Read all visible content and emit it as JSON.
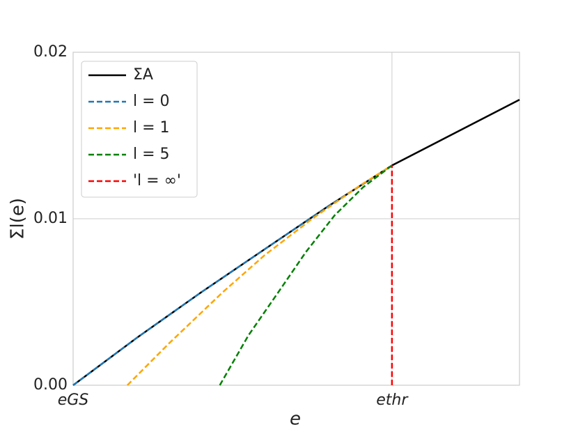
{
  "chart_data": {
    "type": "line",
    "xlabel": "e",
    "ylabel": "Σl(e)",
    "xlim": [
      0,
      1.4
    ],
    "ylim": [
      0,
      0.02
    ],
    "xticks": [
      {
        "value": 0,
        "label": "eGS"
      },
      {
        "value": 1.0,
        "label": "ethr"
      }
    ],
    "yticks": [
      {
        "value": 0,
        "label": "0.00"
      },
      0.01,
      0.02
    ],
    "grid": true,
    "legend": "upper left",
    "series": [
      {
        "name": "ΣA",
        "color": "#000000",
        "dash": false,
        "x": [
          0,
          0.2,
          0.4,
          0.6,
          0.8,
          1.0,
          1.4
        ],
        "values": [
          0,
          0.00285,
          0.00556,
          0.00816,
          0.01075,
          0.0132,
          0.01715
        ]
      },
      {
        "name": "l = 0",
        "color": "#1f77b4",
        "dash": true,
        "x": [
          0,
          0.2,
          0.4,
          0.6,
          0.8,
          1.0
        ],
        "values": [
          0,
          0.00285,
          0.00556,
          0.00816,
          0.01075,
          0.0132
        ]
      },
      {
        "name": "l = 1",
        "color": "#ffa500",
        "dash": true,
        "x": [
          0.17,
          0.3,
          0.47,
          0.6,
          0.75,
          0.9,
          1.0
        ],
        "values": [
          0,
          0.0025,
          0.0056,
          0.0078,
          0.01,
          0.012,
          0.0132
        ]
      },
      {
        "name": "l = 5",
        "color": "#008000",
        "dash": true,
        "x": [
          0.46,
          0.55,
          0.644,
          0.73,
          0.82,
          0.91,
          1.0
        ],
        "values": [
          0,
          0.003,
          0.0056,
          0.008,
          0.0102,
          0.0119,
          0.0132
        ]
      },
      {
        "name": "'l = ∞'",
        "color": "#ff0000",
        "dash": true,
        "x": [
          1.0,
          1.0
        ],
        "values": [
          0,
          0.0132
        ]
      }
    ]
  }
}
